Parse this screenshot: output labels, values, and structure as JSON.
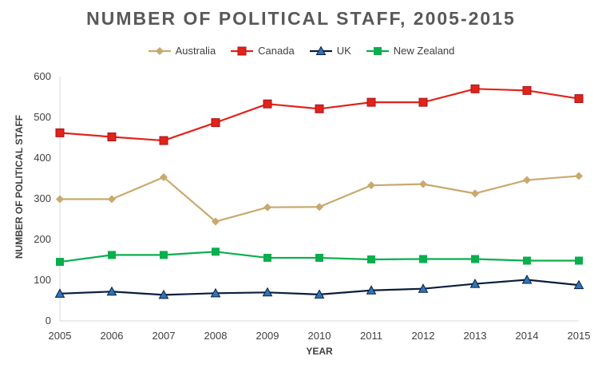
{
  "chart_data": {
    "type": "line",
    "title": "NUMBER OF POLITICAL STAFF, 2005-2015",
    "xlabel": "YEAR",
    "ylabel": "NUMBER OF POLITICAL STAFF",
    "ylim": [
      0,
      600
    ],
    "yticks": [
      0,
      100,
      200,
      300,
      400,
      500,
      600
    ],
    "grid": false,
    "legend_position": "top",
    "categories": [
      "2005",
      "2006",
      "2007",
      "2008",
      "2009",
      "2010",
      "2011",
      "2012",
      "2013",
      "2014",
      "2015"
    ],
    "series": [
      {
        "name": "Australia",
        "color": "#C9A96E",
        "marker": "diamond",
        "values": [
          299,
          299,
          353,
          244,
          279,
          280,
          333,
          336,
          313,
          346,
          356
        ]
      },
      {
        "name": "Canada",
        "color": "#E2231A",
        "marker": "square",
        "values": [
          462,
          452,
          443,
          487,
          533,
          521,
          537,
          537,
          570,
          566,
          546
        ]
      },
      {
        "name": "UK",
        "color": "#0B1E3F",
        "marker": "triangle",
        "values": [
          67,
          72,
          64,
          68,
          70,
          65,
          75,
          79,
          91,
          101,
          88
        ]
      },
      {
        "name": "New Zealand",
        "color": "#0AAE4E",
        "marker": "square-green",
        "values": [
          145,
          162,
          162,
          170,
          155,
          155,
          151,
          152,
          152,
          148,
          148
        ]
      }
    ]
  }
}
